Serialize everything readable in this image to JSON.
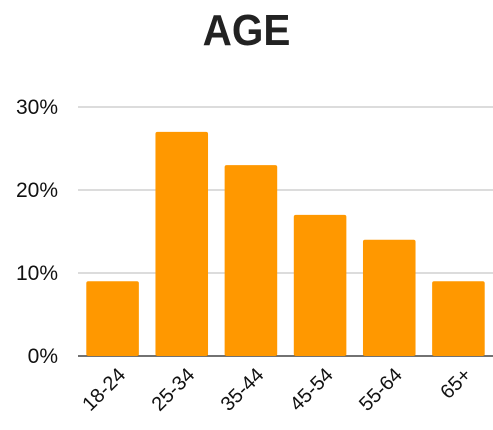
{
  "chart_data": {
    "type": "bar",
    "title": "AGE",
    "categories": [
      "18-24",
      "25-34",
      "35-44",
      "45-54",
      "55-64",
      "65+"
    ],
    "values": [
      9,
      27,
      23,
      17,
      14,
      9
    ],
    "ylim": [
      0,
      30
    ],
    "yticks": [
      0,
      10,
      20,
      30
    ],
    "ytick_labels": [
      "0%",
      "10%",
      "20%",
      "30%"
    ],
    "xlabel": "",
    "ylabel": "",
    "grid": true,
    "bar_color": "#ff9800",
    "grid_color": "#c8c8c8"
  }
}
